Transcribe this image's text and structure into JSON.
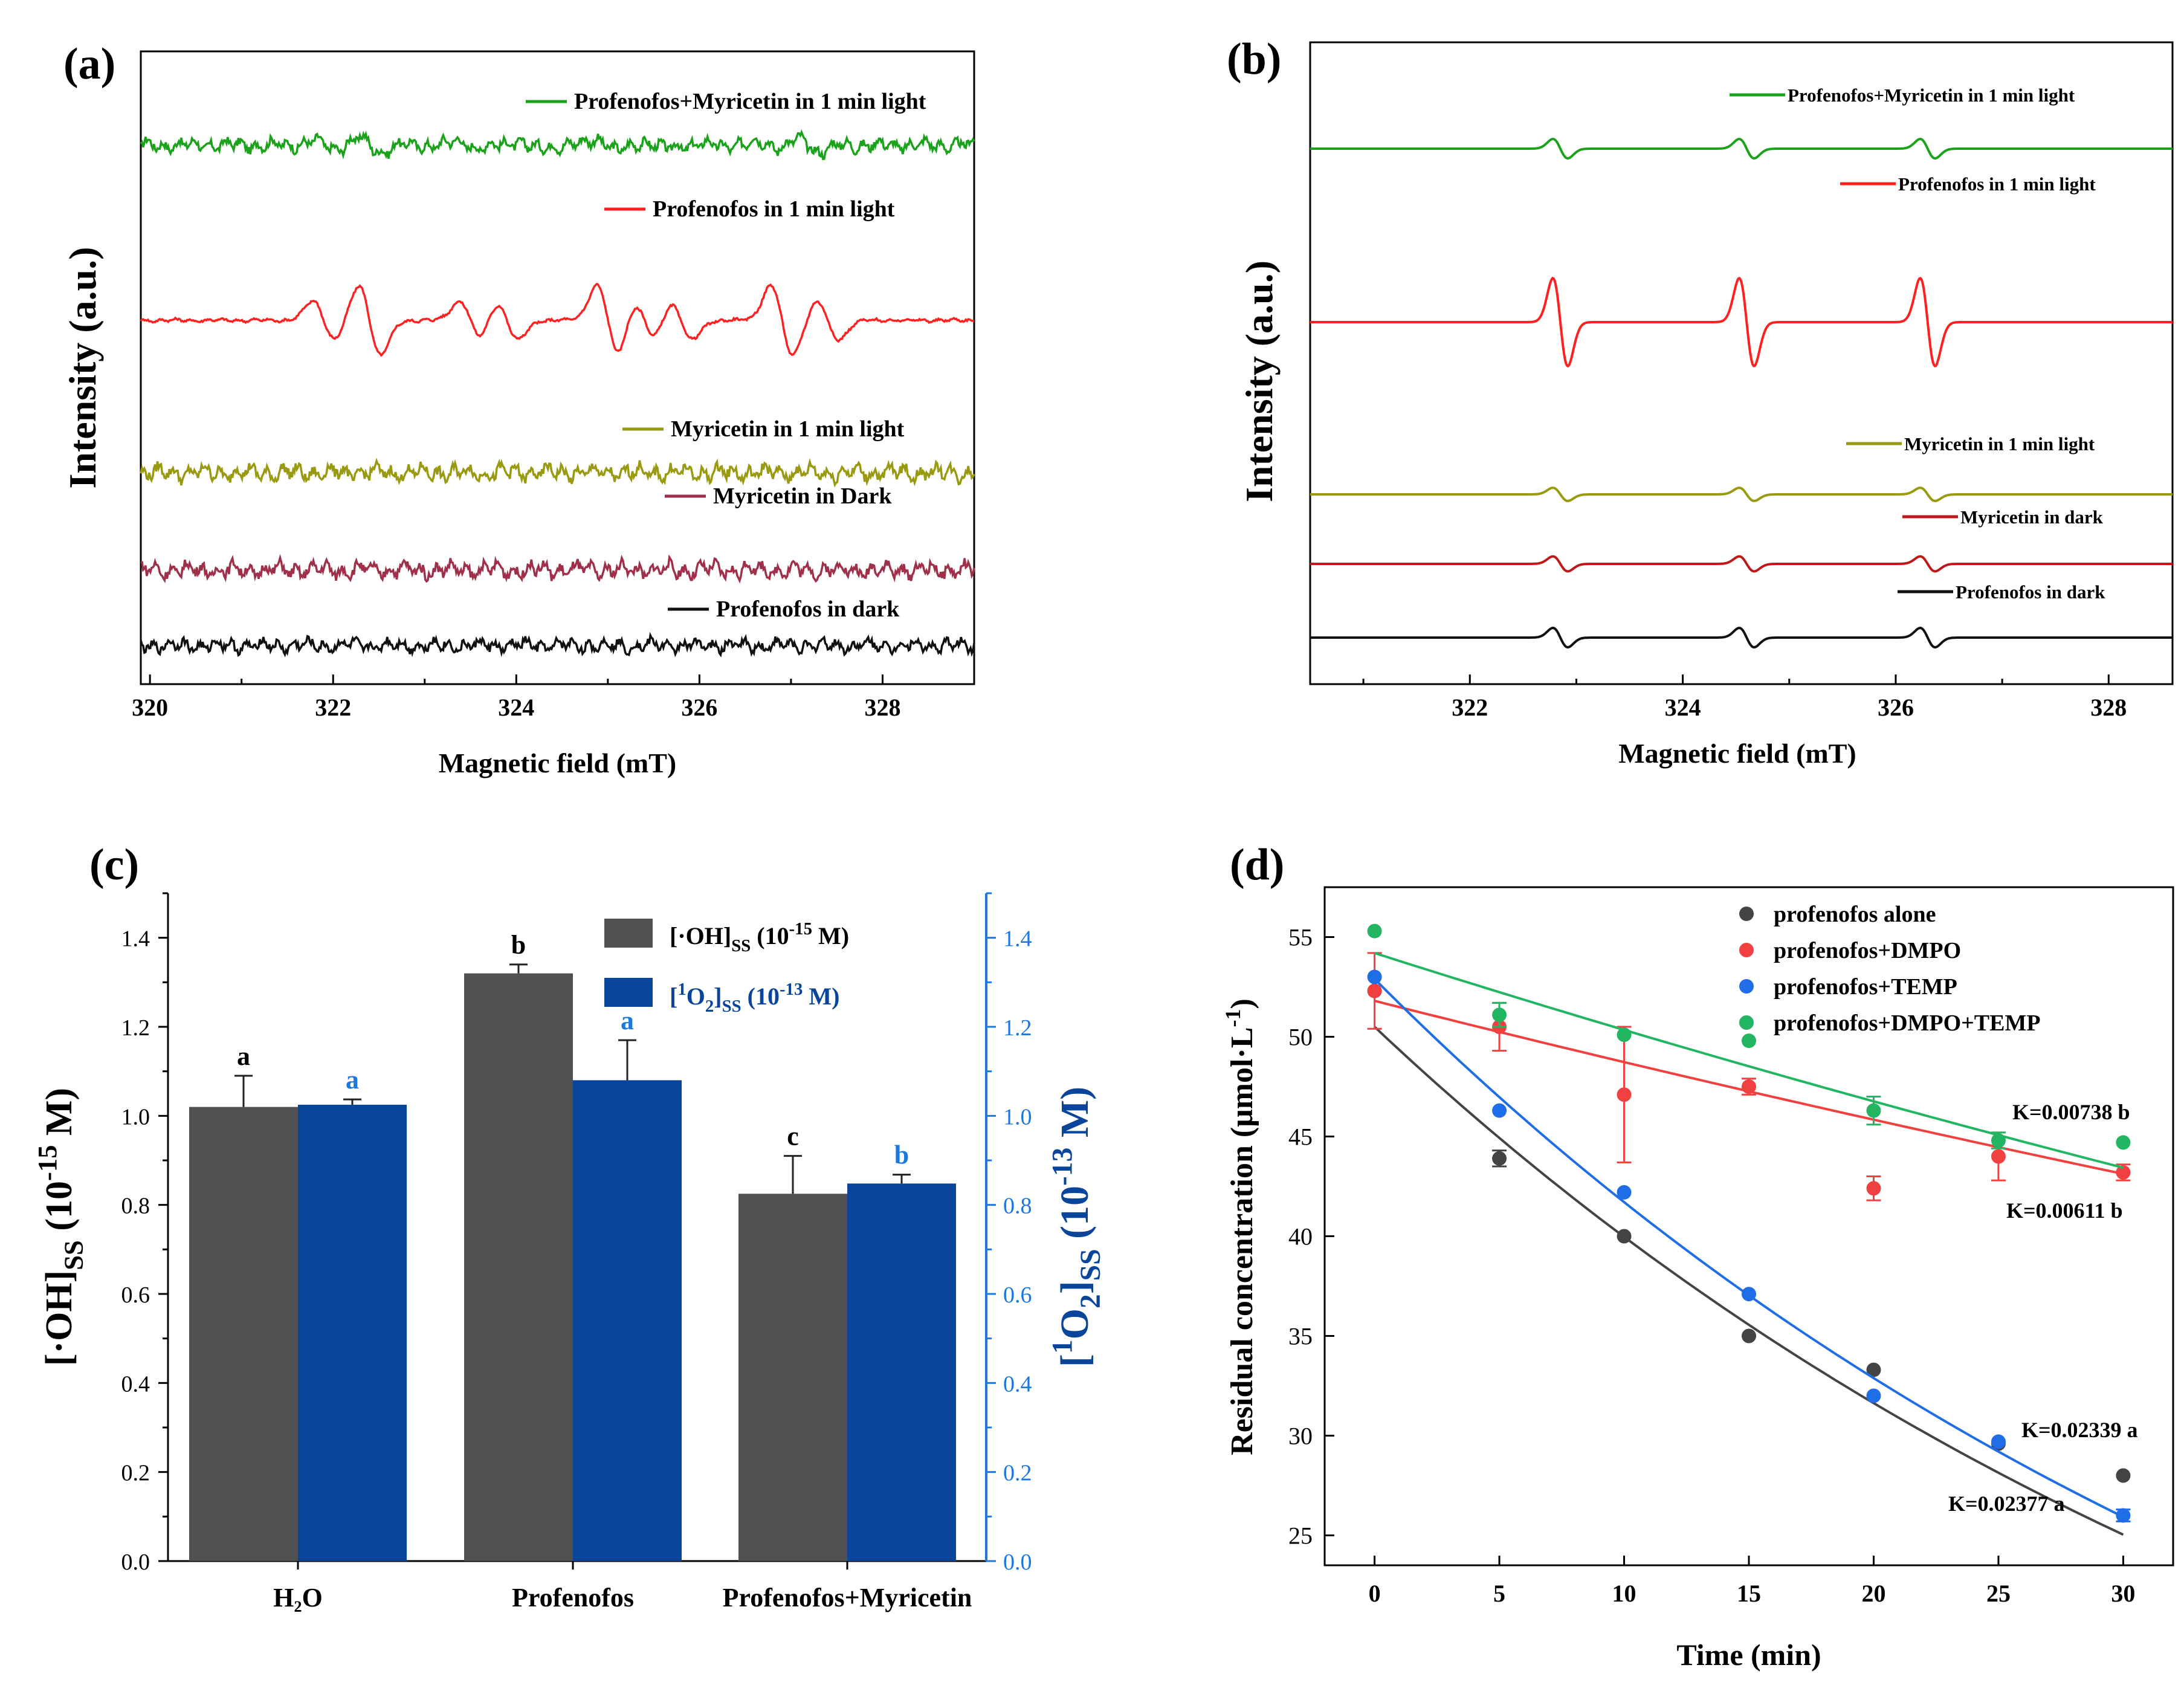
{
  "figure": {
    "panels": [
      {
        "id": "a",
        "label": "(a)"
      },
      {
        "id": "b",
        "label": "(b)"
      },
      {
        "id": "c",
        "label": "(c)"
      },
      {
        "id": "d",
        "label": "(d)"
      }
    ]
  },
  "colors": {
    "green": "#1aa31a",
    "red": "#ff2020",
    "olive": "#9a9a10",
    "maroon": "#a0304a",
    "darkred": "#c01818",
    "black": "#111111",
    "bar_gray": "#505050",
    "bar_blue": "#08459b",
    "axis_blue": "#1a78e0",
    "pt_green": "#22b562",
    "pt_red": "#f04040",
    "pt_blue": "#1f6ee8",
    "pt_gray": "#444444"
  },
  "chart_data": [
    {
      "panel": "a",
      "type": "line",
      "title": "",
      "xlabel": "Magnetic field (mT)",
      "ylabel": "Intensity (a.u.)",
      "xlim": [
        319.9,
        329.0
      ],
      "xticks": [
        "320",
        "322",
        "324",
        "326",
        "328"
      ],
      "xtick_values": [
        320,
        322,
        324,
        326,
        328
      ],
      "series": [
        {
          "name": "Profenofos+Myricetin in 1 min light",
          "color": "#1aa31a",
          "baseline": 4,
          "peaks": [
            321.9,
            322.4,
            323.5,
            324.1,
            325.0,
            325.5,
            326.8,
            327.2
          ],
          "amp": 0.18,
          "noise": 0.12
        },
        {
          "name": "Profenofos in 1 min light",
          "color": "#ff2020",
          "baseline": 3,
          "peaks": [
            321.9,
            322.4,
            323.5,
            323.9,
            325.0,
            325.4,
            325.8,
            326.9,
            327.4
          ],
          "amp": 1.0,
          "noise": 0.03
        },
        {
          "name": "Myricetin in 1 min light",
          "color": "#9a9a10",
          "baseline": 2,
          "peaks": [],
          "amp": 0.0,
          "noise": 0.15
        },
        {
          "name": "Myricetin in Dark",
          "color": "#a0304a",
          "baseline": 1,
          "peaks": [],
          "amp": 0.0,
          "noise": 0.15
        },
        {
          "name": "Profenofos in dark",
          "color": "#111111",
          "baseline": 0,
          "peaks": [],
          "amp": 0.0,
          "noise": 0.12
        }
      ]
    },
    {
      "panel": "b",
      "type": "line",
      "title": "",
      "xlabel": "Magnetic field (mT)",
      "ylabel": "Intensity (a.u.)",
      "xlim": [
        320.5,
        328.6
      ],
      "xticks": [
        "322",
        "324",
        "326",
        "328"
      ],
      "xtick_values": [
        322,
        324,
        326,
        328
      ],
      "peak_positions": [
        322.85,
        324.6,
        326.3
      ],
      "series": [
        {
          "name": "Profenofos+Myricetin in 1 min light",
          "color": "#1aa31a",
          "baseline": 4,
          "amp": 0.22
        },
        {
          "name": "Profenofos in 1 min light",
          "color": "#ff2020",
          "baseline": 3,
          "amp": 1.0
        },
        {
          "name": "Myricetin in 1 min light",
          "color": "#9a9a10",
          "baseline": 2,
          "amp": 0.15
        },
        {
          "name": "Myricetin in dark",
          "color": "#c01818",
          "baseline": 1,
          "amp": 0.17
        },
        {
          "name": "Profenofos in dark",
          "color": "#111111",
          "baseline": 0,
          "amp": 0.22
        }
      ]
    },
    {
      "panel": "c",
      "type": "bar",
      "title": "",
      "xlabel": "",
      "ylabel_left_parts": [
        "[·OH]",
        "SS",
        " (10",
        "-15",
        " M)"
      ],
      "ylabel_right_parts": [
        "[",
        "1",
        "O",
        "2",
        "]",
        "SS",
        " (10",
        "-13",
        " M)"
      ],
      "ylim": [
        0.0,
        1.5
      ],
      "yticks": [
        "0.0",
        "0.2",
        "0.4",
        "0.6",
        "0.8",
        "1.0",
        "1.2",
        "1.4"
      ],
      "ytick_values": [
        0.0,
        0.2,
        0.4,
        0.6,
        0.8,
        1.0,
        1.2,
        1.4
      ],
      "categories": [
        "H₂O",
        "Profenofos",
        "Profenofos+Myricetin"
      ],
      "series": [
        {
          "name": "[·OH]SS (10-15 M)",
          "legend_parts": [
            "[·OH]",
            "SS",
            " (10",
            "-15",
            " M)"
          ],
          "color": "#505050",
          "values": [
            1.02,
            1.32,
            0.825
          ],
          "errors": [
            0.07,
            0.02,
            0.085
          ],
          "letters": [
            "a",
            "b",
            "c"
          ]
        },
        {
          "name": "[1O2]SS (10-13 M)",
          "legend_parts": [
            "[",
            "1",
            "O",
            "2",
            "]",
            "SS",
            " (10",
            "-13",
            " M)"
          ],
          "color": "#08459b",
          "values": [
            1.025,
            1.08,
            0.848
          ],
          "errors": [
            0.012,
            0.09,
            0.02
          ],
          "letters": [
            "a",
            "a",
            "b"
          ]
        }
      ]
    },
    {
      "panel": "d",
      "type": "scatter",
      "title": "",
      "xlabel": "Time (min)",
      "ylabel": "Residual concentration (μmol·L",
      "ylabel_sup": "-1",
      "ylabel_close": ")",
      "xlim": [
        -2,
        32
      ],
      "ylim": [
        23.5,
        57.5
      ],
      "xticks": [
        "0",
        "5",
        "10",
        "15",
        "20",
        "25",
        "30"
      ],
      "xtick_values": [
        0,
        5,
        10,
        15,
        20,
        25,
        30
      ],
      "yticks": [
        "25",
        "30",
        "35",
        "40",
        "45",
        "50",
        "55"
      ],
      "ytick_values": [
        25,
        30,
        35,
        40,
        45,
        50,
        55
      ],
      "x": [
        0,
        5,
        10,
        15,
        20,
        25,
        30
      ],
      "series": [
        {
          "name": "profenofos alone",
          "color": "#444444",
          "values": [
            52.3,
            43.9,
            40.0,
            35.0,
            33.3,
            29.6,
            28.0
          ],
          "errors": [
            0,
            0.4,
            0,
            0,
            0,
            0,
            0
          ],
          "fit": "exp",
          "fit_c0": 50.5,
          "fit_k": 0.02339,
          "annotation": "K=0.02339 a"
        },
        {
          "name": "profenofos+DMPO",
          "color": "#f04040",
          "values": [
            52.3,
            50.5,
            47.1,
            47.5,
            42.4,
            44.0,
            43.2
          ],
          "errors": [
            1.9,
            1.2,
            3.4,
            0.4,
            0.6,
            1.2,
            0.4
          ],
          "fit": "exp",
          "fit_c0": 51.8,
          "fit_k": 0.00611,
          "annotation": "K=0.00611 b"
        },
        {
          "name": "profenofos+TEMP",
          "color": "#1f6ee8",
          "values": [
            53.0,
            46.3,
            42.2,
            37.1,
            32.0,
            29.7,
            26.0
          ],
          "errors": [
            0,
            0,
            0,
            0,
            0,
            0,
            0.3
          ],
          "fit": "exp",
          "fit_c0": 52.9,
          "fit_k": 0.02377,
          "annotation": "K=0.02377 a"
        },
        {
          "name": "profenofos+DMPO+TEMP",
          "color": "#22b562",
          "values": [
            55.3,
            51.1,
            50.1,
            49.8,
            46.3,
            44.8,
            44.7
          ],
          "errors": [
            0,
            0.6,
            0,
            0,
            0.7,
            0.4,
            0
          ],
          "fit": "exp",
          "fit_c0": 54.2,
          "fit_k": 0.00738,
          "annotation": "K=0.00738 b"
        }
      ]
    }
  ]
}
